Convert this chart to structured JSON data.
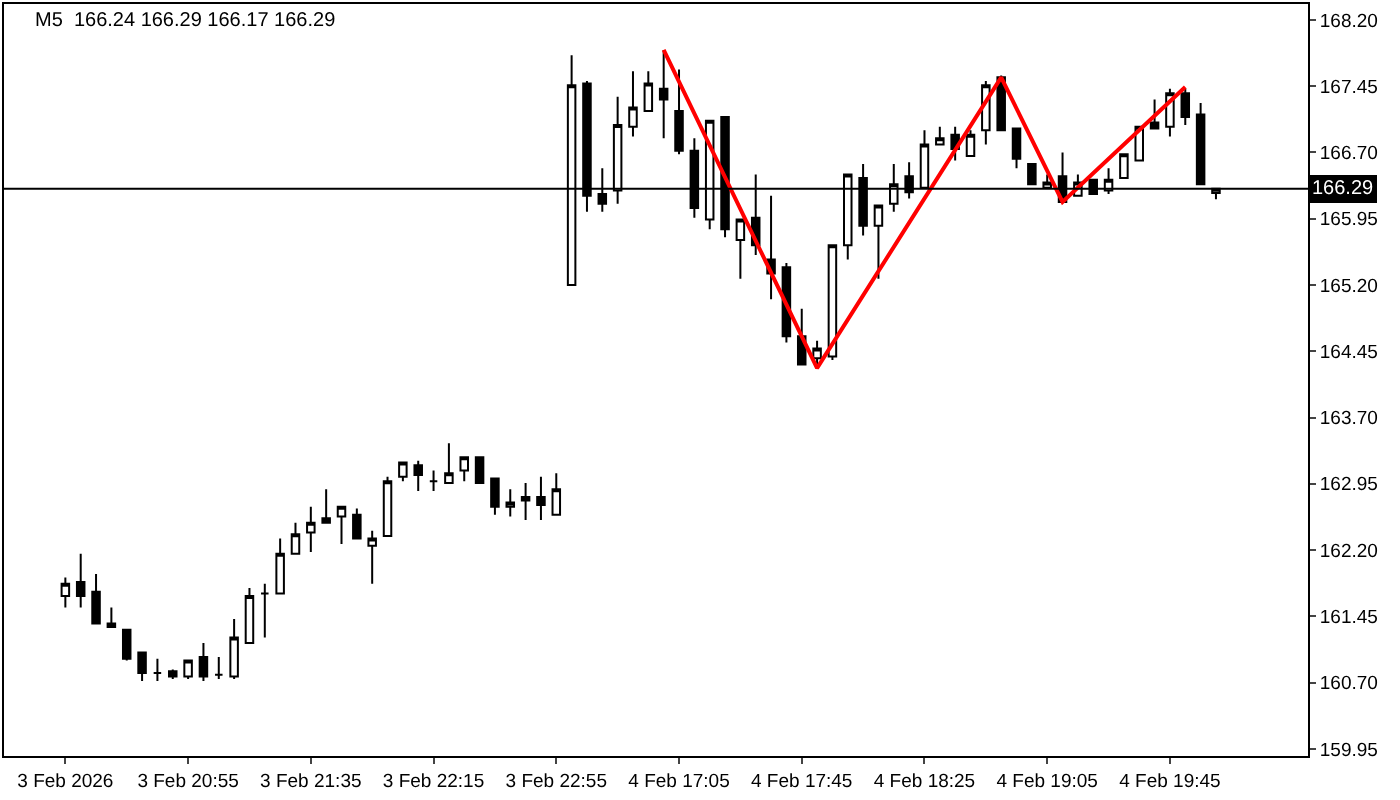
{
  "chart_data": {
    "type": "candlestick",
    "title": "M5  166.24 166.29 166.17 166.29",
    "categories": [
      "3 Feb 2026",
      null,
      null,
      null,
      null,
      null,
      null,
      null,
      "3 Feb 20:55",
      null,
      null,
      null,
      null,
      null,
      null,
      null,
      "3 Feb 21:35",
      null,
      null,
      null,
      null,
      null,
      null,
      null,
      "3 Feb 22:15",
      null,
      null,
      null,
      null,
      null,
      null,
      null,
      "3 Feb 22:55",
      null,
      null,
      null,
      null,
      null,
      null,
      null,
      "4 Feb 17:05",
      null,
      null,
      null,
      null,
      null,
      null,
      null,
      "4 Feb 17:45",
      null,
      null,
      null,
      null,
      null,
      null,
      null,
      "4 Feb 18:25",
      null,
      null,
      null,
      null,
      null,
      null,
      null,
      "4 Feb 19:05",
      null,
      null,
      null,
      null,
      null,
      null,
      null,
      "4 Feb 19:45",
      null,
      null,
      null
    ],
    "ohlc": [
      [
        161.68,
        161.89,
        161.55,
        161.82
      ],
      [
        161.84,
        162.16,
        161.55,
        161.68
      ],
      [
        161.73,
        161.93,
        161.37,
        161.37
      ],
      [
        161.37,
        161.55,
        161.33,
        161.33
      ],
      [
        161.3,
        161.3,
        160.95,
        160.97
      ],
      [
        161.04,
        161.04,
        160.72,
        160.81
      ],
      [
        160.81,
        160.97,
        160.72,
        160.81
      ],
      [
        160.83,
        160.85,
        160.74,
        160.77
      ],
      [
        160.77,
        160.95,
        160.74,
        160.95
      ],
      [
        160.99,
        161.15,
        160.72,
        160.77
      ],
      [
        160.79,
        160.99,
        160.74,
        160.79
      ],
      [
        160.77,
        161.42,
        160.74,
        161.21
      ],
      [
        161.15,
        161.77,
        161.15,
        161.68
      ],
      [
        161.71,
        161.82,
        161.21,
        161.71
      ],
      [
        161.71,
        162.33,
        161.71,
        162.16
      ],
      [
        162.16,
        162.51,
        162.16,
        162.38
      ],
      [
        162.4,
        162.69,
        162.18,
        162.51
      ],
      [
        162.56,
        162.89,
        162.51,
        162.51
      ],
      [
        162.58,
        162.69,
        162.27,
        162.69
      ],
      [
        162.6,
        162.67,
        162.33,
        162.33
      ],
      [
        162.25,
        162.42,
        161.82,
        162.33
      ],
      [
        162.36,
        163.03,
        162.36,
        162.98
      ],
      [
        163.03,
        163.19,
        162.98,
        163.19
      ],
      [
        163.16,
        163.21,
        162.87,
        163.05
      ],
      [
        162.98,
        163.1,
        162.87,
        162.98
      ],
      [
        162.96,
        163.41,
        162.96,
        163.07
      ],
      [
        163.1,
        163.25,
        162.98,
        163.25
      ],
      [
        163.25,
        163.25,
        162.96,
        162.96
      ],
      [
        163.01,
        163.01,
        162.6,
        162.69
      ],
      [
        162.69,
        162.89,
        162.58,
        162.74
      ],
      [
        162.76,
        162.96,
        162.54,
        162.8
      ],
      [
        162.8,
        163.03,
        162.54,
        162.71
      ],
      [
        162.6,
        163.07,
        162.6,
        162.89
      ],
      [
        165.2,
        167.8,
        165.2,
        167.46
      ],
      [
        167.48,
        167.51,
        166.03,
        166.21
      ],
      [
        166.23,
        166.52,
        166.03,
        166.12
      ],
      [
        166.27,
        167.33,
        166.12,
        167.01
      ],
      [
        166.99,
        167.62,
        166.88,
        167.21
      ],
      [
        167.17,
        167.62,
        167.17,
        167.48
      ],
      [
        167.42,
        167.86,
        166.86,
        167.3
      ],
      [
        167.17,
        167.64,
        166.68,
        166.72
      ],
      [
        166.72,
        166.86,
        165.96,
        166.07
      ],
      [
        165.94,
        167.06,
        165.83,
        167.06
      ],
      [
        167.1,
        167.1,
        165.74,
        165.83
      ],
      [
        165.71,
        165.94,
        165.27,
        165.94
      ],
      [
        165.96,
        166.45,
        165.54,
        165.65
      ],
      [
        165.49,
        166.21,
        165.04,
        165.33
      ],
      [
        165.4,
        165.45,
        164.55,
        164.62
      ],
      [
        164.62,
        164.93,
        164.3,
        164.3
      ],
      [
        164.37,
        164.57,
        164.28,
        164.48
      ],
      [
        164.39,
        165.65,
        164.35,
        165.65
      ],
      [
        165.65,
        166.45,
        165.49,
        166.45
      ],
      [
        166.41,
        166.57,
        165.76,
        165.87
      ],
      [
        165.87,
        166.1,
        165.27,
        166.1
      ],
      [
        166.12,
        166.57,
        166.03,
        166.34
      ],
      [
        166.43,
        166.59,
        166.18,
        166.25
      ],
      [
        166.3,
        166.95,
        166.3,
        166.79
      ],
      [
        166.79,
        166.99,
        166.79,
        166.86
      ],
      [
        166.9,
        166.99,
        166.61,
        166.74
      ],
      [
        166.66,
        166.95,
        166.66,
        166.9
      ],
      [
        166.95,
        167.51,
        166.79,
        167.46
      ],
      [
        167.55,
        167.57,
        166.95,
        166.95
      ],
      [
        166.97,
        166.97,
        166.52,
        166.63
      ],
      [
        166.57,
        166.57,
        166.34,
        166.34
      ],
      [
        166.3,
        166.45,
        166.3,
        166.36
      ],
      [
        166.43,
        166.7,
        166.14,
        166.14
      ],
      [
        166.21,
        166.45,
        166.21,
        166.36
      ],
      [
        166.39,
        166.39,
        166.23,
        166.23
      ],
      [
        166.27,
        166.52,
        166.23,
        166.39
      ],
      [
        166.41,
        166.68,
        166.41,
        166.68
      ],
      [
        166.61,
        166.99,
        166.61,
        166.99
      ],
      [
        167.04,
        167.3,
        166.97,
        166.97
      ],
      [
        166.99,
        167.42,
        166.88,
        167.37
      ],
      [
        167.37,
        167.42,
        167.01,
        167.1
      ],
      [
        167.13,
        167.26,
        166.34,
        166.34
      ],
      [
        166.24,
        166.29,
        166.17,
        166.29
      ]
    ],
    "series": [
      {
        "type": "line",
        "color": "#ff0000",
        "values": [
          null,
          null,
          null,
          null,
          null,
          null,
          null,
          null,
          null,
          null,
          null,
          null,
          null,
          null,
          null,
          null,
          null,
          null,
          null,
          null,
          null,
          null,
          null,
          null,
          null,
          null,
          null,
          null,
          null,
          null,
          null,
          null,
          null,
          null,
          null,
          null,
          null,
          null,
          null,
          167.86,
          null,
          null,
          null,
          null,
          null,
          null,
          null,
          null,
          null,
          164.26,
          null,
          null,
          null,
          null,
          null,
          null,
          null,
          null,
          null,
          null,
          null,
          167.55,
          null,
          null,
          null,
          166.14,
          null,
          null,
          null,
          null,
          null,
          null,
          null,
          167.44,
          null,
          null
        ]
      }
    ],
    "ylim": [
      159.87,
      168.38
    ],
    "yticks": [
      {
        "value": 159.95,
        "label": "159.95"
      },
      {
        "value": 160.7,
        "label": "160.70"
      },
      {
        "value": 161.45,
        "label": "161.45"
      },
      {
        "value": 162.2,
        "label": "162.20"
      },
      {
        "value": 162.95,
        "label": "162.95"
      },
      {
        "value": 163.7,
        "label": "163.70"
      },
      {
        "value": 164.45,
        "label": "164.45"
      },
      {
        "value": 165.2,
        "label": "165.20"
      },
      {
        "value": 165.95,
        "label": "165.95"
      },
      {
        "value": 166.7,
        "label": "166.70"
      },
      {
        "value": 167.45,
        "label": "167.45"
      },
      {
        "value": 168.2,
        "label": "168.20"
      }
    ],
    "ref_lines": [
      {
        "axis": "y",
        "value": 166.29,
        "label": "166.29",
        "color": "#000000"
      }
    ],
    "grid": false
  }
}
